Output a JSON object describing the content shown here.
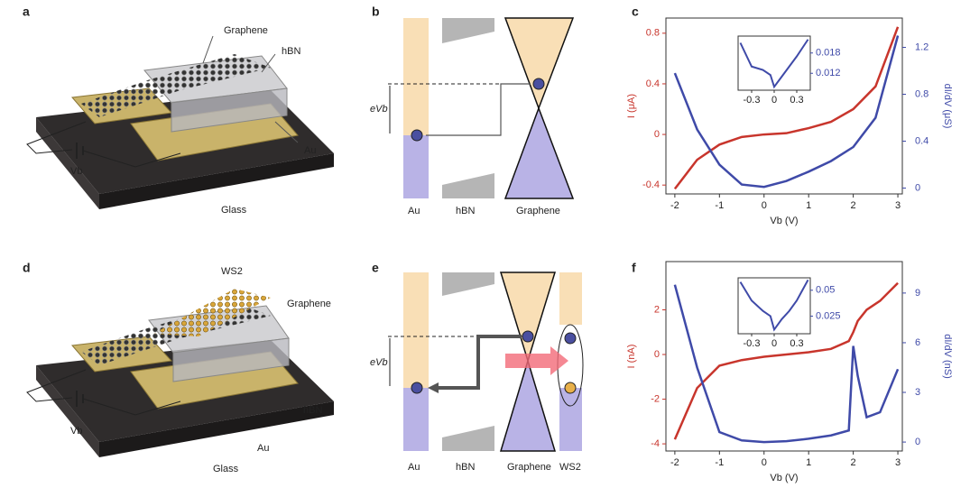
{
  "panels": {
    "a": {
      "letter": "a",
      "labels": [
        "Graphene",
        "hBN",
        "Au",
        "Glass",
        "Vb"
      ]
    },
    "b": {
      "letter": "b",
      "labels": [
        "eVb",
        "Au",
        "hBN",
        "Graphene"
      ]
    },
    "c": {
      "letter": "c"
    },
    "d": {
      "letter": "d",
      "labels": [
        "WS2",
        "Graphene",
        "hBN",
        "Au",
        "Glass",
        "Vb"
      ]
    },
    "e": {
      "letter": "e",
      "labels": [
        "eVb",
        "Au",
        "hBN",
        "Graphene",
        "WS2"
      ]
    },
    "f": {
      "letter": "f"
    }
  },
  "chart_data": [
    {
      "type": "line",
      "xlabel": "Vb (V)",
      "ylabel": "I (μA)",
      "y2label": "dI/dV (μS)",
      "x": [
        -2,
        -1.5,
        -1,
        -0.5,
        0,
        0.5,
        1,
        1.5,
        2,
        2.5,
        3
      ],
      "xlim": [
        -2.2,
        3.1
      ],
      "xticks": [
        -2,
        -1,
        0,
        1,
        2,
        3
      ],
      "ylim": [
        -0.47,
        0.92
      ],
      "yticks": [
        -0.4,
        0,
        0.4,
        0.8
      ],
      "y2lim": [
        -0.05,
        1.45
      ],
      "y2ticks": [
        0,
        0.4,
        0.8,
        1.2
      ],
      "series": [
        {
          "name": "I",
          "color": "#c8352c",
          "axis": "y",
          "values": [
            -0.43,
            -0.2,
            -0.08,
            -0.02,
            0,
            0.01,
            0.05,
            0.1,
            0.2,
            0.38,
            0.85
          ]
        },
        {
          "name": "dI/dV",
          "color": "#3f4aa8",
          "axis": "y2",
          "values": [
            0.98,
            0.5,
            0.2,
            0.03,
            0.01,
            0.06,
            0.14,
            0.23,
            0.35,
            0.6,
            1.3
          ]
        }
      ],
      "inset": {
        "x": [
          -0.45,
          -0.3,
          -0.15,
          -0.05,
          0,
          0.1,
          0.2,
          0.3,
          0.45
        ],
        "xlim": [
          -0.48,
          0.48
        ],
        "xticks": [
          -0.3,
          0,
          0.3
        ],
        "y2lim": [
          0.007,
          0.023
        ],
        "y2ticks": [
          0.012,
          0.018
        ],
        "color": "#3f4aa8",
        "values": [
          0.021,
          0.014,
          0.013,
          0.0115,
          0.008,
          0.011,
          0.014,
          0.017,
          0.022
        ]
      }
    },
    {
      "type": "line",
      "xlabel": "Vb (V)",
      "ylabel": "I (nA)",
      "y2label": "dI/dV (nS)",
      "x": [
        -2,
        -1.5,
        -1,
        -0.5,
        0,
        0.5,
        1,
        1.5,
        1.9,
        2,
        2.1,
        2.3,
        2.6,
        3
      ],
      "xlim": [
        -2.2,
        3.1
      ],
      "xticks": [
        -2,
        -1,
        0,
        1,
        2,
        3
      ],
      "ylim": [
        -4.32,
        4.16
      ],
      "yticks": [
        -4,
        -2,
        0,
        2
      ],
      "y2lim": [
        -0.54,
        10.9
      ],
      "y2ticks": [
        0,
        3,
        6,
        9
      ],
      "series": [
        {
          "name": "I",
          "color": "#c8352c",
          "axis": "y",
          "values": [
            -3.8,
            -1.5,
            -0.5,
            -0.25,
            -0.1,
            0,
            0.1,
            0.25,
            0.6,
            1.0,
            1.5,
            2.0,
            2.4,
            3.2
          ]
        },
        {
          "name": "dI/dV",
          "color": "#3f4aa8",
          "axis": "y2",
          "values": [
            9.5,
            4.5,
            0.6,
            0.1,
            0,
            0.05,
            0.2,
            0.4,
            0.7,
            5.8,
            4,
            1.5,
            1.8,
            4.4
          ]
        }
      ],
      "inset": {
        "x": [
          -0.45,
          -0.3,
          -0.15,
          -0.05,
          0,
          0.1,
          0.2,
          0.3,
          0.45
        ],
        "xlim": [
          -0.48,
          0.48
        ],
        "xticks": [
          -0.3,
          0,
          0.3
        ],
        "y2lim": [
          0.008,
          0.062
        ],
        "y2ticks": [
          0.025,
          0.05
        ],
        "color": "#3f4aa8",
        "values": [
          0.058,
          0.04,
          0.03,
          0.025,
          0.012,
          0.022,
          0.03,
          0.04,
          0.06
        ]
      }
    }
  ]
}
